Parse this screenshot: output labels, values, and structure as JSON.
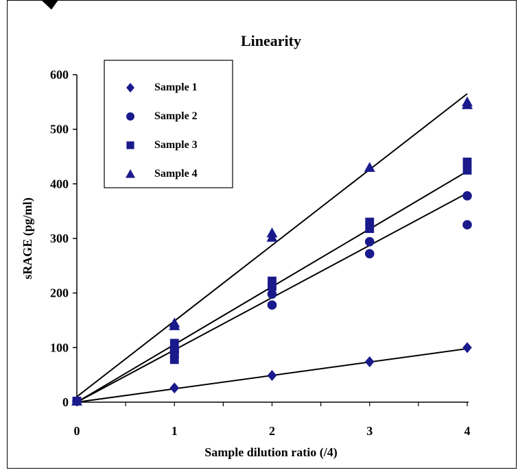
{
  "chart_data": {
    "type": "scatter",
    "title": "Linearity",
    "xlabel": "Sample dilution ratio (/4)",
    "ylabel": "sRAGE (pg/ml)",
    "xlim": [
      0,
      4
    ],
    "ylim": [
      0,
      600
    ],
    "x_ticks": [
      "0",
      "1",
      "2",
      "3",
      "4"
    ],
    "y_ticks": [
      "0",
      "100",
      "200",
      "300",
      "400",
      "500",
      "600"
    ],
    "legend_position": "top-left",
    "marker_color": "#1a1a8c",
    "series": [
      {
        "name": "Sample 1",
        "marker": "diamond",
        "points": [
          [
            0,
            2
          ],
          [
            1,
            26
          ],
          [
            2,
            49
          ],
          [
            3,
            74
          ],
          [
            4,
            100
          ]
        ],
        "fit": [
          [
            0,
            0
          ],
          [
            4,
            98
          ]
        ]
      },
      {
        "name": "Sample 2",
        "marker": "circle",
        "points": [
          [
            0,
            2
          ],
          [
            1,
            92
          ],
          [
            1,
            98
          ],
          [
            2,
            178
          ],
          [
            2,
            198
          ],
          [
            3,
            272
          ],
          [
            3,
            294
          ],
          [
            4,
            325
          ],
          [
            4,
            378
          ]
        ],
        "fit": [
          [
            0,
            0
          ],
          [
            4,
            383
          ]
        ]
      },
      {
        "name": "Sample 3",
        "marker": "square",
        "points": [
          [
            0,
            2
          ],
          [
            1,
            78
          ],
          [
            1,
            88
          ],
          [
            1,
            108
          ],
          [
            2,
            212
          ],
          [
            2,
            222
          ],
          [
            3,
            318
          ],
          [
            3,
            330
          ],
          [
            4,
            425
          ],
          [
            4,
            440
          ]
        ],
        "fit": [
          [
            0,
            0
          ],
          [
            4,
            423
          ]
        ]
      },
      {
        "name": "Sample 4",
        "marker": "triangle",
        "points": [
          [
            0,
            2
          ],
          [
            1,
            140
          ],
          [
            1,
            145
          ],
          [
            2,
            302
          ],
          [
            2,
            310
          ],
          [
            3,
            430
          ],
          [
            4,
            545
          ],
          [
            4,
            550
          ]
        ],
        "fit": [
          [
            0,
            10
          ],
          [
            4,
            565
          ]
        ]
      }
    ]
  }
}
